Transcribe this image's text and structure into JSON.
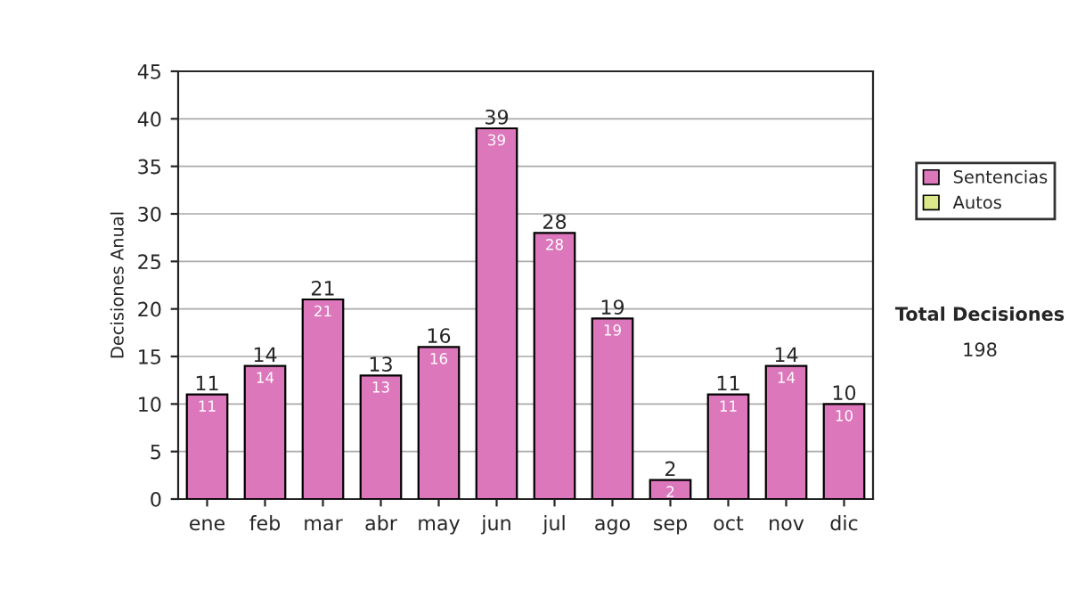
{
  "chart_data": {
    "type": "bar",
    "ylabel": "Decisiones Anual",
    "categories": [
      "ene",
      "feb",
      "mar",
      "abr",
      "may",
      "jun",
      "jul",
      "ago",
      "sep",
      "oct",
      "nov",
      "dic"
    ],
    "series": [
      {
        "name": "Sentencias",
        "color": "#dd77bb",
        "values": [
          11,
          14,
          21,
          13,
          16,
          39,
          28,
          19,
          2,
          11,
          14,
          10
        ],
        "value_labels": [
          "11",
          "14",
          "21",
          "13",
          "16",
          "39",
          "28",
          "19",
          "2",
          "11",
          "14",
          "10"
        ]
      },
      {
        "name": "Autos",
        "color": "#dde888",
        "values": [
          null,
          null,
          null,
          null,
          null,
          null,
          null,
          null,
          null,
          null,
          null,
          null
        ]
      }
    ],
    "ylim": [
      0,
      45
    ],
    "yticks": [
      0,
      5,
      10,
      15,
      20,
      25,
      30,
      35,
      40,
      45
    ],
    "grid": "y",
    "legend": "right",
    "annotations": [
      "Total Decisiones",
      "198"
    ]
  }
}
